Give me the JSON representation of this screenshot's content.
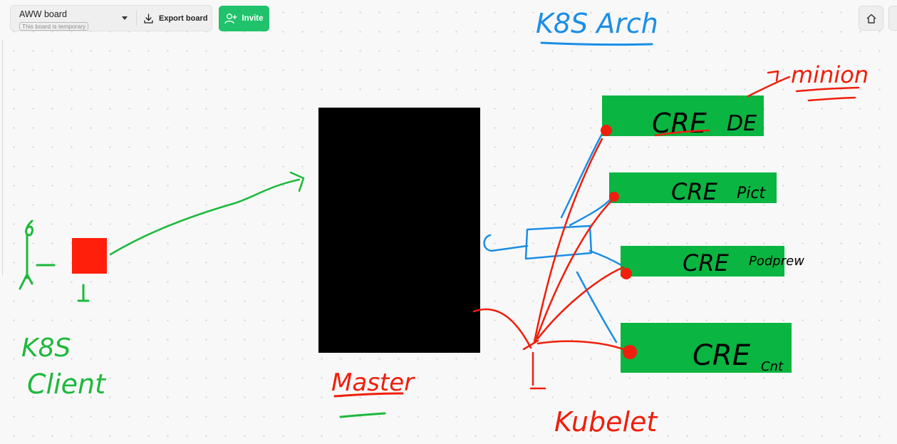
{
  "toolbar": {
    "board_name": "AWW board",
    "temporary_badge": "This board is temporary",
    "export_label": "Export board",
    "invite_label": "Invite"
  },
  "icons": {
    "dropdown": "chevron-down-icon",
    "export": "download-icon",
    "invite": "add-user-icon",
    "home": "home-icon"
  },
  "colors": {
    "invite_green": "#20c26b",
    "ink_green": "#1db93b",
    "ink_blue": "#1a8ee6",
    "ink_red": "#f01e0c",
    "box_green": "#0ab541",
    "master_black": "#000000"
  },
  "drawing": {
    "title": "K8S Arch",
    "client_label_line1": "K8S",
    "client_label_line2": "Client",
    "master_label": "Master",
    "kubelet_label": "Kubelet",
    "minion_label": "minion",
    "cre_boxes": [
      {
        "label": "CRE",
        "sublabel": "DE"
      },
      {
        "label": "CRE",
        "sublabel": "Pict"
      },
      {
        "label": "CRE",
        "sublabel": "Podprew"
      },
      {
        "label": "CRE",
        "sublabel": "Cnt"
      }
    ]
  }
}
